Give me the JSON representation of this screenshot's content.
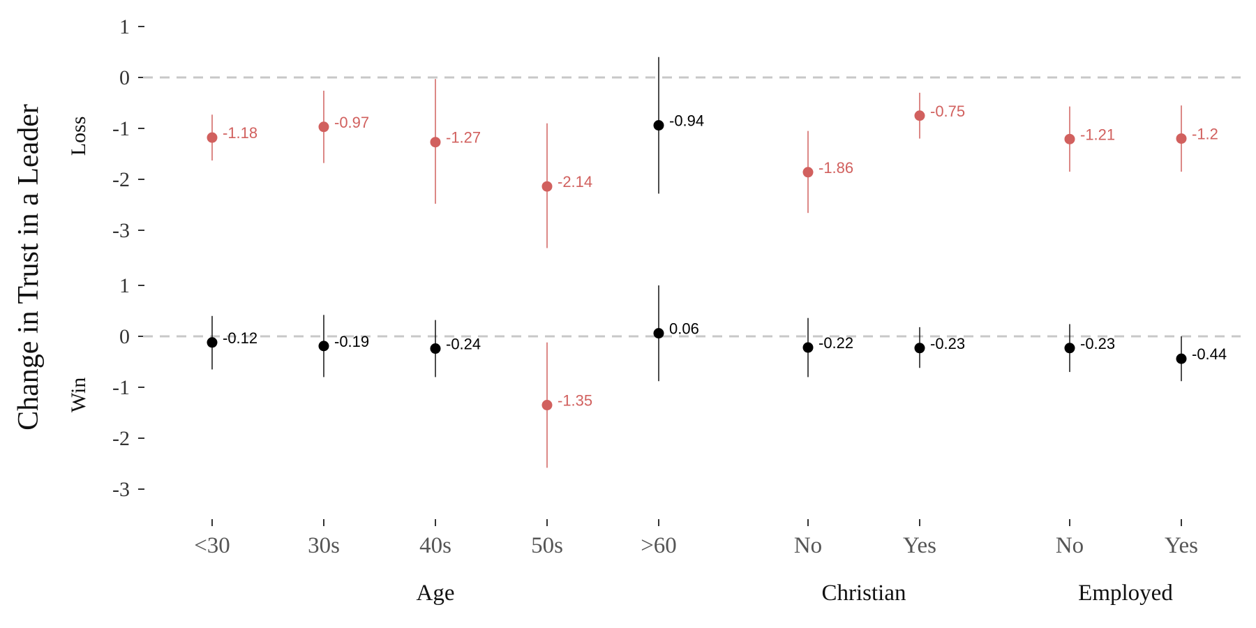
{
  "chart_data": {
    "type": "scatter",
    "ylabel": "Change in Trust in a Leader",
    "colors": {
      "highlight": "#d1605e",
      "normal": "#000000",
      "zero_line": "#c8c8c8"
    },
    "groups": [
      {
        "label": "Age",
        "categories": [
          "<30",
          "30s",
          "40s",
          "50s",
          ">60"
        ]
      },
      {
        "label": "Christian",
        "categories": [
          "No",
          "Yes"
        ]
      },
      {
        "label": "Employed",
        "categories": [
          "No",
          "Yes"
        ]
      }
    ],
    "yticks": [
      1,
      0,
      -1,
      -2,
      -3
    ],
    "ylim": [
      -3.5,
      1.2
    ],
    "zero_line": "dashed",
    "panels": [
      {
        "label": "Loss",
        "points": [
          {
            "group": "Age",
            "category": "<30",
            "value": -1.18,
            "low": -1.63,
            "high": -0.73,
            "highlight": true,
            "label": "-1.18"
          },
          {
            "group": "Age",
            "category": "30s",
            "value": -0.97,
            "low": -1.68,
            "high": -0.26,
            "highlight": true,
            "label": "-0.97"
          },
          {
            "group": "Age",
            "category": "40s",
            "value": -1.27,
            "low": -2.48,
            "high": -0.03,
            "highlight": true,
            "label": "-1.27"
          },
          {
            "group": "Age",
            "category": "50s",
            "value": -2.14,
            "low": -3.35,
            "high": -0.9,
            "highlight": true,
            "label": "-2.14"
          },
          {
            "group": "Age",
            "category": ">60",
            "value": -0.94,
            "low": -2.28,
            "high": 0.4,
            "highlight": false,
            "label": "-0.94"
          },
          {
            "group": "Christian",
            "category": "No",
            "value": -1.86,
            "low": -2.66,
            "high": -1.05,
            "highlight": true,
            "label": "-1.86"
          },
          {
            "group": "Christian",
            "category": "Yes",
            "value": -0.75,
            "low": -1.2,
            "high": -0.3,
            "highlight": true,
            "label": "-0.75"
          },
          {
            "group": "Employed",
            "category": "No",
            "value": -1.21,
            "low": -1.85,
            "high": -0.57,
            "highlight": true,
            "label": "-1.21"
          },
          {
            "group": "Employed",
            "category": "Yes",
            "value": -1.2,
            "low": -1.85,
            "high": -0.55,
            "highlight": true,
            "label": "-1.2"
          }
        ]
      },
      {
        "label": "Win",
        "points": [
          {
            "group": "Age",
            "category": "<30",
            "value": -0.12,
            "low": -0.65,
            "high": 0.4,
            "highlight": false,
            "label": "-0.12"
          },
          {
            "group": "Age",
            "category": "30s",
            "value": -0.19,
            "low": -0.8,
            "high": 0.42,
            "highlight": false,
            "label": "-0.19"
          },
          {
            "group": "Age",
            "category": "40s",
            "value": -0.24,
            "low": -0.8,
            "high": 0.32,
            "highlight": false,
            "label": "-0.24"
          },
          {
            "group": "Age",
            "category": "50s",
            "value": -1.35,
            "low": -2.58,
            "high": -0.12,
            "highlight": true,
            "label": "-1.35"
          },
          {
            "group": "Age",
            "category": ">60",
            "value": 0.06,
            "low": -0.88,
            "high": 1.0,
            "highlight": false,
            "label": "0.06"
          },
          {
            "group": "Christian",
            "category": "No",
            "value": -0.22,
            "low": -0.8,
            "high": 0.36,
            "highlight": false,
            "label": "-0.22"
          },
          {
            "group": "Christian",
            "category": "Yes",
            "value": -0.23,
            "low": -0.62,
            "high": 0.18,
            "highlight": false,
            "label": "-0.23"
          },
          {
            "group": "Employed",
            "category": "No",
            "value": -0.23,
            "low": -0.7,
            "high": 0.24,
            "highlight": false,
            "label": "-0.23"
          },
          {
            "group": "Employed",
            "category": "Yes",
            "value": -0.44,
            "low": -0.88,
            "high": 0.0,
            "highlight": false,
            "label": "-0.44"
          }
        ]
      }
    ]
  }
}
